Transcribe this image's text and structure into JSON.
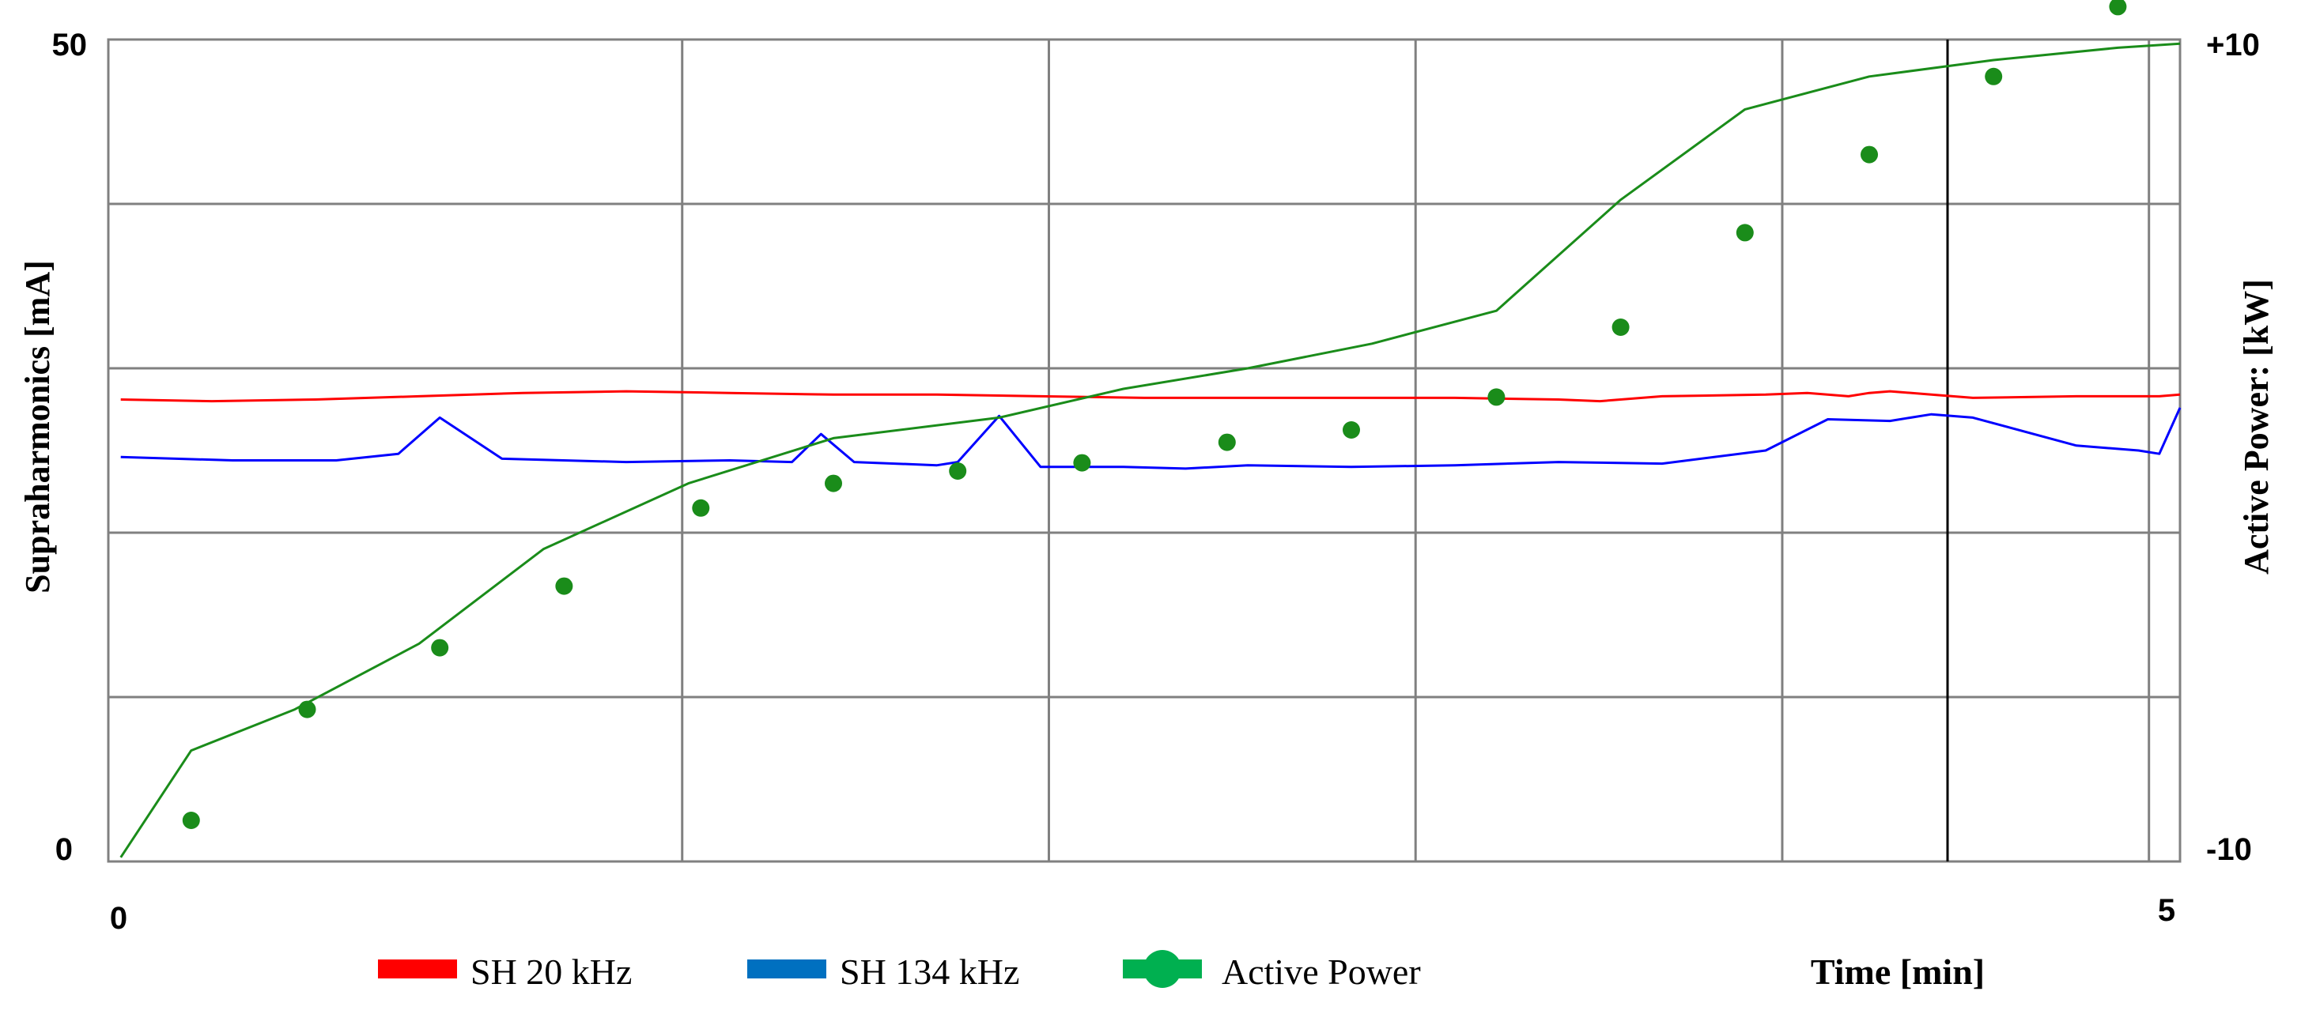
{
  "chart_data": {
    "type": "line",
    "xlabel": "Time [min]",
    "ylabel": "Supraharmonics [mA]",
    "y2label": "Active Power: [kW]",
    "xlim": [
      0,
      5
    ],
    "ylim": [
      0,
      50
    ],
    "y2lim": [
      -10,
      10
    ],
    "x_ticks": [
      "0",
      "5"
    ],
    "y_ticks": [
      "0",
      "50"
    ],
    "y2_ticks": [
      "-10",
      "+10"
    ],
    "grid": true,
    "legend": "bottom-left",
    "colors": {
      "sh20": "#ff0000",
      "sh134": "#0000ff",
      "power": "#1a8c1a",
      "legend_sh134": "#0070c0",
      "legend_power": "#00b050"
    },
    "series": [
      {
        "name": "SH 20 kHz",
        "axis": "left",
        "style": "line",
        "x": [
          0.03,
          0.25,
          0.5,
          0.75,
          1.0,
          1.25,
          1.5,
          1.75,
          2.0,
          2.25,
          2.5,
          2.75,
          3.0,
          3.25,
          3.5,
          3.6,
          3.75,
          4.0,
          4.1,
          4.2,
          4.25,
          4.3,
          4.4,
          4.5,
          4.75,
          4.95,
          5.0
        ],
        "y": [
          28.1,
          28.0,
          28.1,
          28.3,
          28.5,
          28.6,
          28.5,
          28.4,
          28.4,
          28.3,
          28.2,
          28.2,
          28.2,
          28.2,
          28.1,
          28.0,
          28.3,
          28.4,
          28.5,
          28.3,
          28.5,
          28.6,
          28.4,
          28.2,
          28.3,
          28.3,
          28.4
        ]
      },
      {
        "name": "SH 134 kHz",
        "axis": "left",
        "style": "line",
        "x": [
          0.03,
          0.3,
          0.55,
          0.7,
          0.8,
          0.95,
          1.25,
          1.5,
          1.65,
          1.72,
          1.8,
          2.0,
          2.05,
          2.15,
          2.25,
          2.45,
          2.6,
          2.75,
          3.0,
          3.25,
          3.5,
          3.75,
          4.0,
          4.15,
          4.3,
          4.4,
          4.5,
          4.75,
          4.9,
          4.95,
          5.0
        ],
        "y": [
          24.6,
          24.4,
          24.4,
          24.8,
          27.0,
          24.5,
          24.3,
          24.4,
          24.3,
          26.0,
          24.3,
          24.1,
          24.3,
          27.1,
          24.0,
          24.0,
          23.9,
          24.1,
          24.0,
          24.1,
          24.3,
          24.2,
          25.0,
          26.9,
          26.8,
          27.2,
          27.0,
          25.3,
          25.0,
          24.8,
          27.6
        ]
      },
      {
        "name": "Active Power",
        "axis": "right",
        "style": "line-markers",
        "x": [
          0.03,
          0.2,
          0.45,
          0.75,
          1.05,
          1.4,
          1.75,
          2.15,
          2.45,
          2.75,
          3.05,
          3.35,
          3.65,
          3.95,
          4.25,
          4.55,
          4.85,
          5.0
        ],
        "y": [
          -9.9,
          -7.3,
          -6.3,
          -4.7,
          -2.4,
          -0.8,
          0.3,
          0.8,
          1.5,
          2.0,
          2.6,
          3.4,
          6.1,
          8.3,
          9.1,
          9.5,
          9.8,
          9.9
        ],
        "marker_x": [
          0.2,
          0.48,
          0.8,
          1.1,
          1.43,
          1.75,
          2.05,
          2.35,
          2.7,
          3.0,
          3.35,
          3.65,
          3.95,
          4.25,
          4.55,
          4.85
        ],
        "marker_y": [
          -9.0,
          -6.3,
          -4.8,
          -3.3,
          -1.4,
          -0.8,
          -0.5,
          -0.3,
          0.2,
          0.5,
          1.3,
          3.0,
          5.3,
          7.2,
          9.1,
          10.8
        ]
      }
    ]
  }
}
